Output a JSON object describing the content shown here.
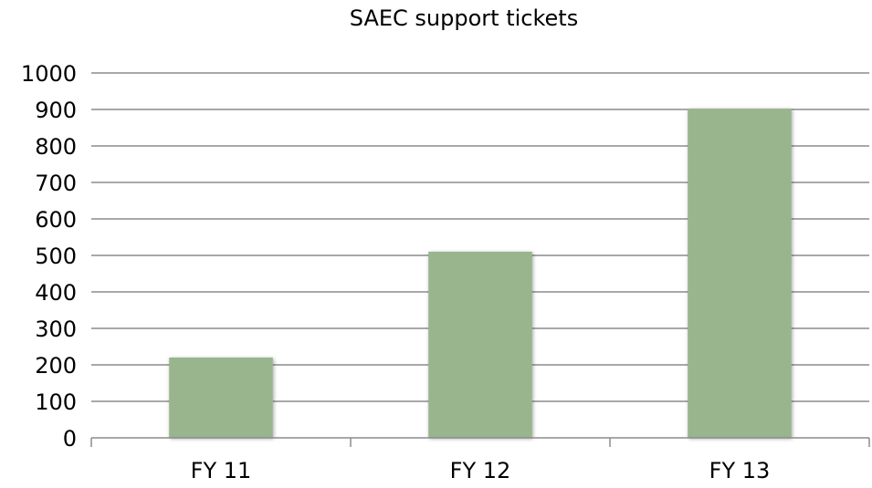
{
  "chart_data": {
    "type": "bar",
    "title": "SAEC support tickets",
    "categories": [
      "FY 11",
      "FY 12",
      "FY 13"
    ],
    "values": [
      220,
      510,
      902
    ],
    "xlabel": "",
    "ylabel": "",
    "ylim": [
      0,
      1000
    ],
    "yticks": [
      0,
      100,
      200,
      300,
      400,
      500,
      600,
      700,
      800,
      900,
      1000
    ],
    "grid": true,
    "legend": "none",
    "colors": {
      "bar": "#98b58d",
      "grid": "#8c8c8c",
      "text": "#000000"
    }
  }
}
